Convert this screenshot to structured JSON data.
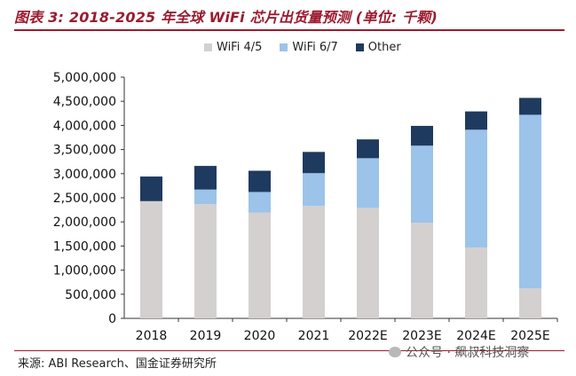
{
  "title": "图表 3: 2018-2025 年全球 WiFi 芯片出货量预测 (单位: 千颗)",
  "source": "来源: ABI Research、国金证券研究所",
  "watermark": "公众号 · 飙叔科技洞察",
  "colors": {
    "title": "#9b1b2f",
    "wifi45": "#d4d0cf",
    "wifi67": "#9cc3ea",
    "other": "#1f3a5f"
  },
  "chart_data": {
    "type": "bar",
    "stacked": true,
    "title": "2018-2025 年全球 WiFi 芯片出货量预测 (单位: 千颗)",
    "xlabel": "",
    "ylabel": "",
    "categories": [
      "2018",
      "2019",
      "2020",
      "2021",
      "2022E",
      "2023E",
      "2024E",
      "2025E"
    ],
    "series": [
      {
        "name": "WiFi 4/5",
        "color": "#d4d0cf",
        "values": [
          2430000,
          2370000,
          2190000,
          2330000,
          2290000,
          1980000,
          1470000,
          620000
        ]
      },
      {
        "name": "WiFi 6/7",
        "color": "#9cc3ea",
        "values": [
          0,
          300000,
          430000,
          680000,
          1030000,
          1600000,
          2440000,
          3600000
        ]
      },
      {
        "name": "Other",
        "color": "#1f3a5f",
        "values": [
          510000,
          490000,
          440000,
          440000,
          390000,
          410000,
          380000,
          350000
        ]
      }
    ],
    "ylim": [
      0,
      5000000
    ],
    "yticks": [
      0,
      500000,
      1000000,
      1500000,
      2000000,
      2500000,
      3000000,
      3500000,
      4000000,
      4500000,
      5000000
    ],
    "ytick_labels": [
      "0",
      "500,000",
      "1,000,000",
      "1,500,000",
      "2,000,000",
      "2,500,000",
      "3,000,000",
      "3,500,000",
      "4,000,000",
      "4,500,000",
      "5,000,000"
    ],
    "legend": "top",
    "grid": false
  }
}
